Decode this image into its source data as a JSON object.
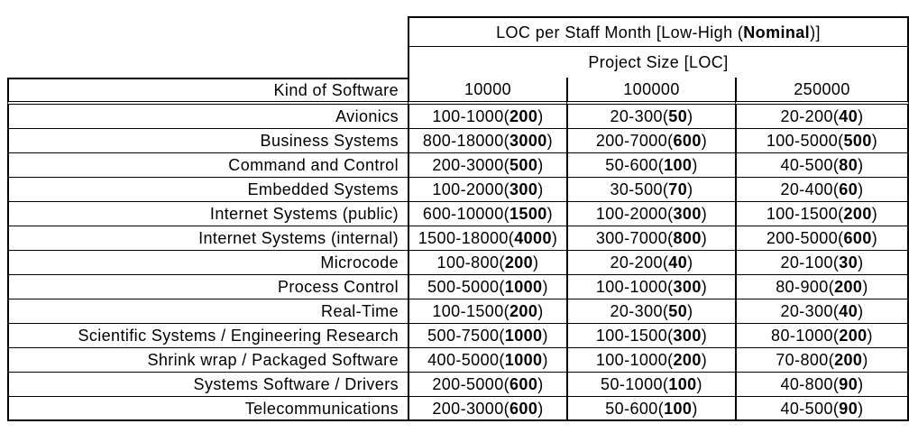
{
  "page": {
    "background_color": "#ffffff",
    "border_color": "#000000",
    "text_color": "#000000"
  },
  "table": {
    "title_prefix": "LOC per Staff Month [Low-High (",
    "title_bold": "Nominal",
    "title_suffix": ")]",
    "subtitle": "Project Size [LOC]",
    "corner_label": "Kind of Software",
    "size_columns": [
      "10000",
      "100000",
      "250000"
    ],
    "rows": [
      {
        "label": "Avionics",
        "cells": [
          [
            "100-1000(",
            "200",
            ")"
          ],
          [
            "20-300(",
            "50",
            ")"
          ],
          [
            "20-200(",
            "40",
            ")"
          ]
        ]
      },
      {
        "label": "Business Systems",
        "cells": [
          [
            "800-18000(",
            "3000",
            ")"
          ],
          [
            "200-7000(",
            "600",
            ")"
          ],
          [
            "100-5000(",
            "500",
            ")"
          ]
        ]
      },
      {
        "label": "Command and Control",
        "cells": [
          [
            "200-3000(",
            "500",
            ")"
          ],
          [
            "50-600(",
            "100",
            ")"
          ],
          [
            "40-500(",
            "80",
            ")"
          ]
        ]
      },
      {
        "label": "Embedded Systems",
        "cells": [
          [
            "100-2000(",
            "300",
            ")"
          ],
          [
            "30-500(",
            "70",
            ")"
          ],
          [
            "20-400(",
            "60",
            ")"
          ]
        ]
      },
      {
        "label": "Internet Systems (public)",
        "cells": [
          [
            "600-10000(",
            "1500",
            ")"
          ],
          [
            "100-2000(",
            "300",
            ")"
          ],
          [
            "100-1500(",
            "200",
            ")"
          ]
        ]
      },
      {
        "label": "Internet Systems (internal)",
        "cells": [
          [
            "1500-18000(",
            "4000",
            ")"
          ],
          [
            "300-7000(",
            "800",
            ")"
          ],
          [
            "200-5000(",
            "600",
            ")"
          ]
        ]
      },
      {
        "label": "Microcode",
        "cells": [
          [
            "100-800(",
            "200",
            ")"
          ],
          [
            "20-200(",
            "40",
            ")"
          ],
          [
            "20-100(",
            "30",
            ")"
          ]
        ]
      },
      {
        "label": "Process Control",
        "cells": [
          [
            "500-5000(",
            "1000",
            ")"
          ],
          [
            "100-1000(",
            "300",
            ")"
          ],
          [
            "80-900(",
            "200",
            ")"
          ]
        ]
      },
      {
        "label": "Real-Time",
        "cells": [
          [
            "100-1500(",
            "200",
            ")"
          ],
          [
            "20-300(",
            "50",
            ")"
          ],
          [
            "20-300(",
            "40",
            ")"
          ]
        ]
      },
      {
        "label": "Scientific Systems / Engineering Research",
        "cells": [
          [
            "500-7500(",
            "1000",
            ")"
          ],
          [
            "100-1500(",
            "300",
            ")"
          ],
          [
            "80-1000(",
            "200",
            ")"
          ]
        ]
      },
      {
        "label": "Shrink wrap / Packaged Software",
        "cells": [
          [
            "400-5000(",
            "1000",
            ")"
          ],
          [
            "100-1000(",
            "200",
            ")"
          ],
          [
            "70-800(",
            "200",
            ")"
          ]
        ]
      },
      {
        "label": "Systems Software / Drivers",
        "cells": [
          [
            "200-5000(",
            "600",
            ")"
          ],
          [
            "50-1000(",
            "100",
            ")"
          ],
          [
            "40-800(",
            "90",
            ")"
          ]
        ]
      },
      {
        "label": "Telecommunications",
        "cells": [
          [
            "200-3000(",
            "600",
            ")"
          ],
          [
            "50-600(",
            "100",
            ")"
          ],
          [
            "40-500(",
            "90",
            ")"
          ]
        ]
      }
    ]
  }
}
